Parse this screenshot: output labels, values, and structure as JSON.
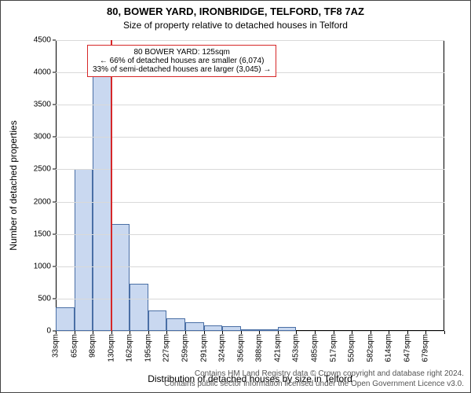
{
  "title_main": "80, BOWER YARD, IRONBRIDGE, TELFORD, TF8 7AZ",
  "title_sub": "Size of property relative to detached houses in Telford",
  "title_fontsize": 13,
  "subtitle_fontsize": 12,
  "ylabel": "Number of detached properties",
  "xlabel": "Distribution of detached houses by size in Telford",
  "axis_label_fontsize": 12,
  "tick_fontsize": 10,
  "footer_fontsize": 10,
  "plot_bg": "#ffffff",
  "grid_color": "#d9d9d9",
  "bar_fill": "#c9d8f0",
  "bar_stroke": "#4a6fa5",
  "refline_color": "#d62728",
  "callout_border": "#d62728",
  "callout_bg": "#ffffff",
  "text_color": "#000000",
  "footer_color": "#555555",
  "ylim": [
    0,
    4500
  ],
  "ytick_step": 500,
  "bins": [
    {
      "label": "33sqm",
      "count": 370
    },
    {
      "label": "65sqm",
      "count": 2500
    },
    {
      "label": "98sqm",
      "count": 4100
    },
    {
      "label": "130sqm",
      "count": 1650
    },
    {
      "label": "162sqm",
      "count": 730
    },
    {
      "label": "195sqm",
      "count": 320
    },
    {
      "label": "227sqm",
      "count": 200
    },
    {
      "label": "259sqm",
      "count": 130
    },
    {
      "label": "291sqm",
      "count": 90
    },
    {
      "label": "324sqm",
      "count": 70
    },
    {
      "label": "356sqm",
      "count": 30
    },
    {
      "label": "388sqm",
      "count": 20
    },
    {
      "label": "421sqm",
      "count": 60
    },
    {
      "label": "453sqm",
      "count": 0
    },
    {
      "label": "485sqm",
      "count": 0
    },
    {
      "label": "517sqm",
      "count": 0
    },
    {
      "label": "550sqm",
      "count": 0
    },
    {
      "label": "582sqm",
      "count": 0
    },
    {
      "label": "614sqm",
      "count": 0
    },
    {
      "label": "647sqm",
      "count": 0
    },
    {
      "label": "679sqm",
      "count": 0
    }
  ],
  "reference": {
    "value_sqm": 125,
    "x_range": [
      33,
      679
    ]
  },
  "callout": {
    "line1": "80 BOWER YARD: 125sqm",
    "line2": "← 66% of detached houses are smaller (6,074)",
    "line3": "33% of semi-detached houses are larger (3,045) →"
  },
  "footer": {
    "line1": "Contains HM Land Registry data © Crown copyright and database right 2024.",
    "line2": "Contains public sector information licensed under the Open Government Licence v3.0."
  }
}
